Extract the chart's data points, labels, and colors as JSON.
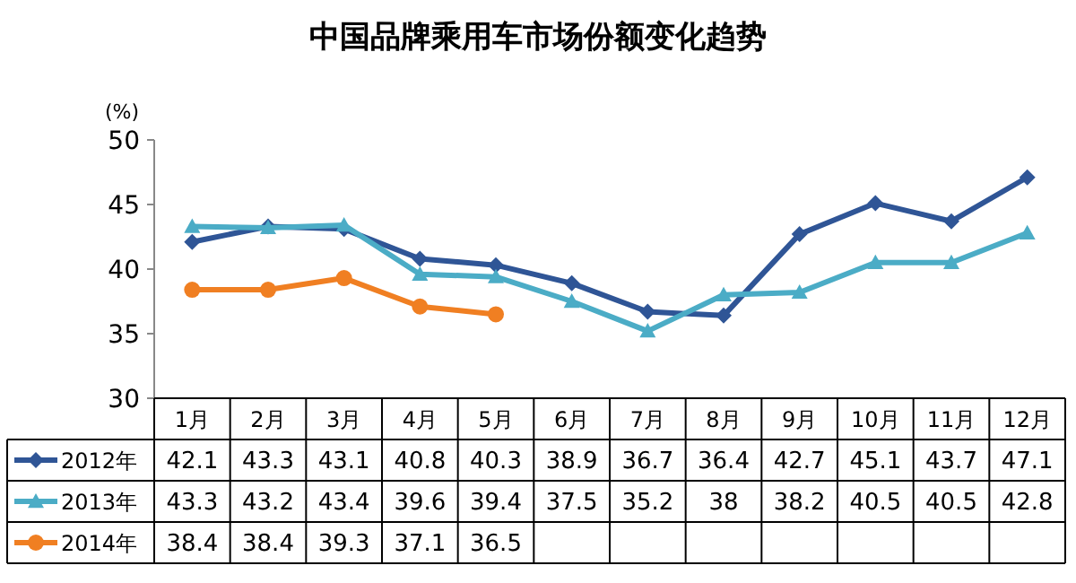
{
  "chart_data": {
    "type": "line",
    "title": "中国品牌乘用车市场份额变化趋势",
    "ylabel": "(%)",
    "categories": [
      "1月",
      "2月",
      "3月",
      "4月",
      "5月",
      "6月",
      "7月",
      "8月",
      "9月",
      "10月",
      "11月",
      "12月"
    ],
    "series": [
      {
        "name": "2012年",
        "color": "#2f5596",
        "marker": "diamond",
        "values": [
          42.1,
          43.3,
          43.1,
          40.8,
          40.3,
          38.9,
          36.7,
          36.4,
          42.7,
          45.1,
          43.7,
          47.1
        ]
      },
      {
        "name": "2013年",
        "color": "#4bacc6",
        "marker": "triangle",
        "values": [
          43.3,
          43.2,
          43.4,
          39.6,
          39.4,
          37.5,
          35.2,
          38,
          38.2,
          40.5,
          40.5,
          42.8
        ]
      },
      {
        "name": "2014年",
        "color": "#f07f22",
        "marker": "circle",
        "values": [
          38.4,
          38.4,
          39.3,
          37.1,
          36.5,
          null,
          null,
          null,
          null,
          null,
          null,
          null
        ]
      }
    ],
    "ylim": [
      30,
      50
    ],
    "yticks": [
      30,
      35,
      40,
      45,
      50
    ],
    "grid": false,
    "legend": "bottom",
    "data_labels": true,
    "line_style": "solid"
  }
}
